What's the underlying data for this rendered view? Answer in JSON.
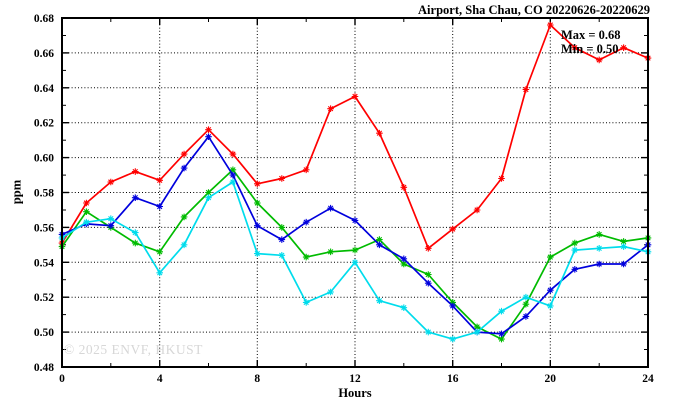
{
  "title": "Airport, Sha Chau, CO 20220626-20220629",
  "annotation": {
    "max_label": "Max = 0.68",
    "min_label": "Min = 0.50"
  },
  "watermark": "© 2025 ENVF, HKUST",
  "chart_data": {
    "type": "line",
    "title": "Airport, Sha Chau, CO 20220626-20220629",
    "xlabel": "Hours",
    "ylabel": "ppm",
    "xlim": [
      0,
      24
    ],
    "ylim": [
      0.48,
      0.68
    ],
    "x_major_ticks": [
      0,
      4,
      8,
      12,
      16,
      20,
      24
    ],
    "x_minor_tick_step": 2,
    "y_major_tick_step": 0.02,
    "y_minor_tick_step": 0.01,
    "y_tick_labels": [
      "0.48",
      "0.50",
      "0.52",
      "0.54",
      "0.56",
      "0.58",
      "0.60",
      "0.62",
      "0.64",
      "0.66",
      "0.68"
    ],
    "x_tick_labels": [
      "0",
      "4",
      "8",
      "12",
      "16",
      "20",
      "24"
    ],
    "grid": "dotted lines at major ticks, mirrored inner ticks on all borders",
    "legend": "none",
    "marker": "asterisk",
    "x": [
      0,
      1,
      2,
      3,
      4,
      5,
      6,
      7,
      8,
      9,
      10,
      11,
      12,
      13,
      14,
      15,
      16,
      17,
      18,
      19,
      20,
      21,
      22,
      23,
      24
    ],
    "series": [
      {
        "name": "red",
        "color": "#ff0000",
        "values": [
          0.551,
          0.574,
          0.586,
          0.592,
          0.587,
          0.602,
          0.616,
          0.602,
          0.585,
          0.588,
          0.593,
          0.628,
          0.635,
          0.614,
          0.583,
          0.548,
          0.559,
          0.57,
          0.588,
          0.639,
          0.676,
          0.663,
          0.656,
          0.663,
          0.657
        ]
      },
      {
        "name": "green",
        "color": "#00bb00",
        "values": [
          0.549,
          0.569,
          0.56,
          0.551,
          0.546,
          0.566,
          0.58,
          0.593,
          0.574,
          0.56,
          0.543,
          0.546,
          0.547,
          0.553,
          0.539,
          0.533,
          0.517,
          0.503,
          0.496,
          0.516,
          0.543,
          0.551,
          0.556,
          0.552,
          0.554
        ]
      },
      {
        "name": "blue",
        "color": "#0000dd",
        "values": [
          0.556,
          0.562,
          0.561,
          0.577,
          0.572,
          0.594,
          0.612,
          0.59,
          0.561,
          0.553,
          0.563,
          0.571,
          0.564,
          0.55,
          0.542,
          0.528,
          0.515,
          0.5,
          0.499,
          0.509,
          0.524,
          0.536,
          0.539,
          0.539,
          0.55
        ]
      },
      {
        "name": "cyan",
        "color": "#00dcec",
        "values": [
          0.554,
          0.563,
          0.565,
          0.557,
          0.534,
          0.55,
          0.577,
          0.586,
          0.545,
          0.544,
          0.517,
          0.523,
          0.54,
          0.518,
          0.514,
          0.5,
          0.496,
          0.5,
          0.512,
          0.52,
          0.515,
          0.547,
          0.548,
          0.549,
          0.546
        ]
      }
    ],
    "annotations": [
      "Max = 0.68",
      "Min = 0.50"
    ]
  }
}
